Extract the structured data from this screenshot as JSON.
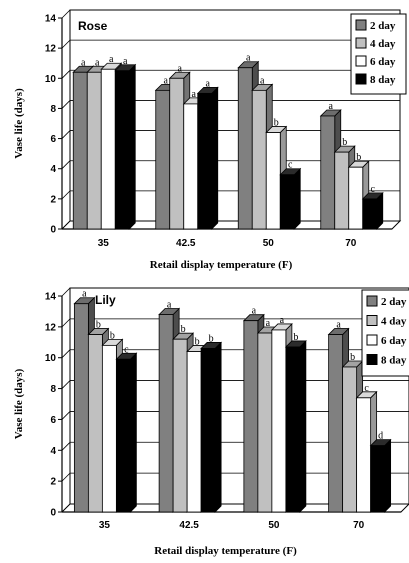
{
  "chart_data": [
    {
      "type": "bar",
      "title": "Rose",
      "xlabel": "Retail display temperature (F)",
      "ylabel": "Vase life (days)",
      "ylim": [
        0,
        14
      ],
      "yticks": [
        0,
        2,
        4,
        6,
        8,
        10,
        12,
        14
      ],
      "categories": [
        "35",
        "42.5",
        "50",
        "70"
      ],
      "series": [
        {
          "name": "2 day",
          "color": "#808080",
          "values": [
            10.4,
            9.2,
            10.7,
            7.5
          ],
          "letters": [
            "a",
            "a",
            "a",
            "a"
          ]
        },
        {
          "name": "4 day",
          "color": "#c0c0c0",
          "values": [
            10.4,
            10.0,
            9.2,
            5.1
          ],
          "letters": [
            "a",
            "a",
            "a",
            "b"
          ]
        },
        {
          "name": "6 day",
          "color": "#ffffff",
          "values": [
            10.6,
            8.3,
            6.4,
            4.1
          ],
          "letters": [
            "a",
            "a",
            "b",
            "b"
          ]
        },
        {
          "name": "8 day",
          "color": "#000000",
          "values": [
            10.5,
            9.0,
            3.6,
            2.0
          ],
          "letters": [
            "a",
            "a",
            "c",
            "c"
          ]
        }
      ],
      "legend": "top-right",
      "grid": true
    },
    {
      "type": "bar",
      "title": "Lily",
      "xlabel": "Retail display temperature (F)",
      "ylabel": "Vase life (days)",
      "ylim": [
        0,
        14
      ],
      "yticks": [
        0,
        2,
        4,
        6,
        8,
        10,
        12,
        14
      ],
      "categories": [
        "35",
        "42.5",
        "50",
        "70"
      ],
      "series": [
        {
          "name": "2 day",
          "color": "#808080",
          "values": [
            13.5,
            12.8,
            12.4,
            11.5
          ],
          "letters": [
            "a",
            "a",
            "a",
            "a"
          ]
        },
        {
          "name": "4 day",
          "color": "#c0c0c0",
          "values": [
            11.5,
            11.2,
            11.6,
            9.4
          ],
          "letters": [
            "b",
            "b",
            "a",
            "b"
          ]
        },
        {
          "name": "6 day",
          "color": "#ffffff",
          "values": [
            10.8,
            10.4,
            11.8,
            7.4
          ],
          "letters": [
            "b",
            "b",
            "a",
            "c"
          ]
        },
        {
          "name": "8 day",
          "color": "#000000",
          "values": [
            9.9,
            10.6,
            10.7,
            4.3
          ],
          "letters": [
            "c",
            "b",
            "b",
            "d"
          ]
        }
      ],
      "legend": "top-right",
      "grid": true
    }
  ]
}
